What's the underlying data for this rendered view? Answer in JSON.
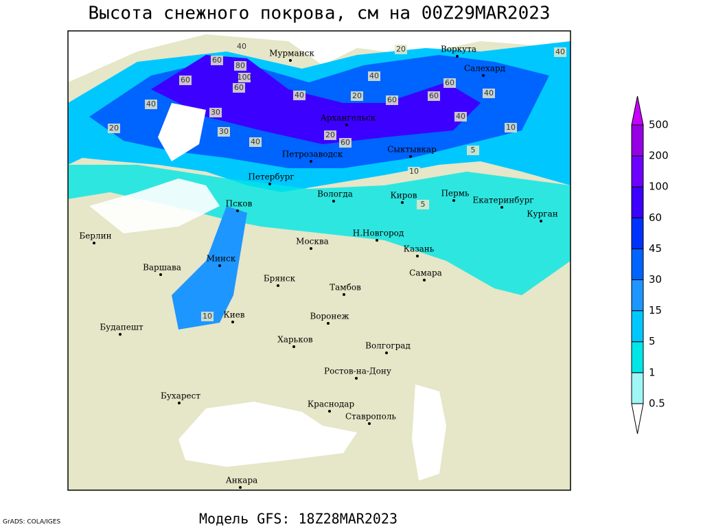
{
  "header": {
    "title": "Высота снежного покрова, см на 00Z29MAR2023"
  },
  "footer": {
    "model": "Модель GFS: 18Z28MAR2023",
    "credit": "GrADS: COLA/IGES"
  },
  "legend": {
    "levels": [
      0.5,
      1,
      5,
      15,
      30,
      45,
      60,
      100,
      200,
      500
    ],
    "colors": [
      "#ffffff",
      "#a0f5f5",
      "#00e6e6",
      "#00c8ff",
      "#1e96ff",
      "#0064ff",
      "#0032ff",
      "#3c00ff",
      "#6e00ff",
      "#9600e6",
      "#c800ff"
    ]
  },
  "cities": [
    "Мурманск",
    "Воркута",
    "Салехард",
    "Архангельск",
    "Сыктывкар",
    "Петрозаводск",
    "Петербург",
    "Вологда",
    "Киров",
    "Пермь",
    "Екатеринбург",
    "Курган",
    "Псков",
    "Берлин",
    "Н.Новгород",
    "Москва",
    "Казань",
    "Варшава",
    "Минск",
    "Самара",
    "Брянск",
    "Тамбов",
    "Киев",
    "Воронеж",
    "Будапешт",
    "Харьков",
    "Волгоград",
    "Ростов-на-Дону",
    "Бухарест",
    "Краснодар",
    "Ставрополь",
    "Анкара"
  ],
  "contour_labels": [
    40,
    60,
    80,
    100,
    60,
    60,
    40,
    30,
    40,
    40,
    60,
    40,
    20,
    60,
    40,
    20,
    30,
    20,
    40,
    20,
    60,
    10,
    5,
    10,
    5,
    40,
    10,
    60
  ]
}
